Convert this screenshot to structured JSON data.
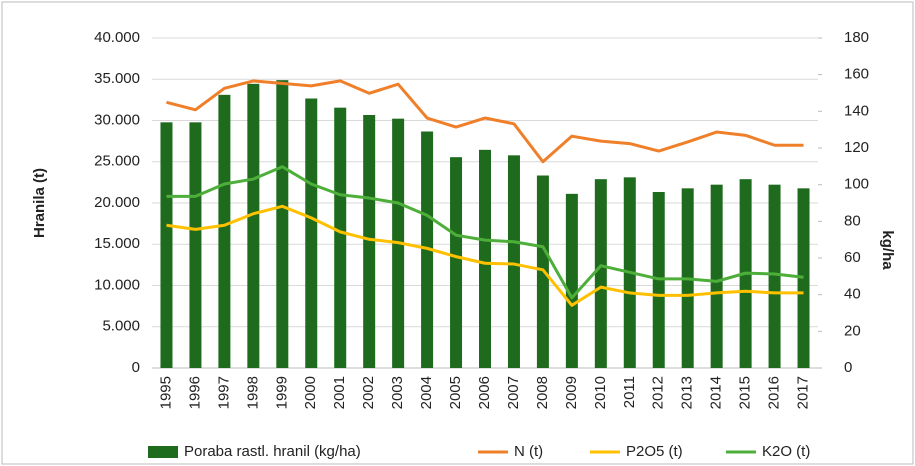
{
  "chart_data": {
    "type": "combo",
    "y_label": "Hranila (t)",
    "y2_label": "kg/ha",
    "categories": [
      "1995",
      "1996",
      "1997",
      "1998",
      "1999",
      "2000",
      "2001",
      "2002",
      "2003",
      "2004",
      "2005",
      "2006",
      "2007",
      "2008",
      "2009",
      "2010",
      "2011",
      "2012",
      "2013",
      "2014",
      "2015",
      "2016",
      "2017"
    ],
    "ylim": [
      0,
      40000
    ],
    "yticks": [
      0,
      {
        "value": 5000,
        "label": "5.000"
      },
      {
        "value": 10000,
        "label": "10.000"
      },
      {
        "value": 15000,
        "label": "15.000"
      },
      {
        "value": 20000,
        "label": "20.000"
      },
      {
        "value": 25000,
        "label": "25.000"
      },
      {
        "value": 30000,
        "label": "30.000"
      },
      {
        "value": 35000,
        "label": "35.000"
      },
      {
        "value": 40000,
        "label": "40.000"
      }
    ],
    "y2lim": [
      0,
      180
    ],
    "y2ticks": [
      0,
      20,
      40,
      60,
      80,
      100,
      120,
      140,
      160,
      180
    ],
    "grid": true,
    "legend": "bottom",
    "series": [
      {
        "name": "Poraba rastl. hranil (kg/ha)",
        "type": "bar",
        "axis": "y2",
        "color": "#1e6b1e",
        "values": [
          134,
          134,
          149,
          155,
          157,
          147,
          142,
          138,
          136,
          129,
          115,
          119,
          116,
          105,
          95,
          103,
          104,
          96,
          98,
          100,
          103,
          100,
          98
        ]
      },
      {
        "name": "N (t)",
        "type": "line",
        "color": "#f07f2a",
        "values": [
          32200,
          31300,
          33900,
          34800,
          34500,
          34200,
          34800,
          33300,
          34400,
          30300,
          29200,
          30300,
          29600,
          25000,
          28100,
          27500,
          27200,
          26300,
          27400,
          28600,
          28200,
          27000,
          27000
        ]
      },
      {
        "name": "P2O5 (t)",
        "type": "line",
        "color": "#ffc000",
        "values": [
          17300,
          16800,
          17300,
          18700,
          19600,
          18200,
          16500,
          15600,
          15200,
          14500,
          13500,
          12700,
          12600,
          11900,
          7600,
          9800,
          9100,
          8800,
          8800,
          9100,
          9300,
          9100,
          9100
        ]
      },
      {
        "name": "K2O (t)",
        "type": "line",
        "color": "#4daf3a",
        "values": [
          20800,
          20800,
          22300,
          22900,
          24400,
          22300,
          21000,
          20600,
          20000,
          18500,
          16100,
          15500,
          15300,
          14700,
          8500,
          12400,
          11600,
          10800,
          10800,
          10500,
          11500,
          11400,
          11000
        ]
      }
    ]
  }
}
